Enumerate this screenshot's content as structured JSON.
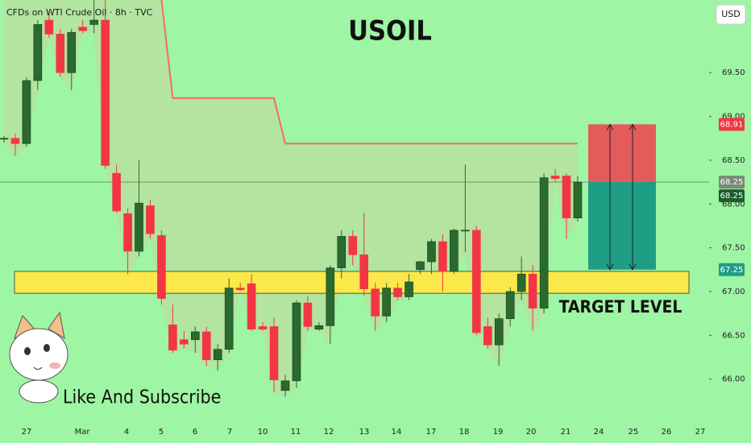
{
  "chart_data": {
    "type": "candlestick",
    "title": "USOIL",
    "subtitle": "CFDs on WTI Crude Oil · 8h · TVC",
    "currency": "USD",
    "annotation": "TARGET LEVEL",
    "caption": "Like And Subscribe",
    "x_labels": [
      "27",
      "Mar",
      "4",
      "5",
      "6",
      "7",
      "10",
      "11",
      "12",
      "13",
      "14",
      "17",
      "18",
      "19",
      "20",
      "21",
      "24",
      "25",
      "26",
      "27"
    ],
    "ylim": [
      65.5,
      70.33
    ],
    "yticks": [
      {
        "value": 66,
        "label": "66.00"
      },
      {
        "value": 66.5,
        "label": "66.50"
      },
      {
        "value": 67,
        "label": "67.00"
      },
      {
        "value": 67.5,
        "label": "67.50"
      },
      {
        "value": 68,
        "label": "68.00"
      },
      {
        "value": 68.5,
        "label": "68.50"
      },
      {
        "value": 69,
        "label": "69.00"
      },
      {
        "value": 69.5,
        "label": "69.50"
      }
    ],
    "grid": false,
    "up_color": "#2a6a2e",
    "down_color": "#f23645",
    "ohlc": [
      [
        68.74,
        68.78,
        68.7,
        68.75
      ],
      [
        68.75,
        68.8,
        68.55,
        68.69
      ],
      [
        68.69,
        69.45,
        68.65,
        69.41
      ],
      [
        69.41,
        70.1,
        69.3,
        70.05
      ],
      [
        70.1,
        70.2,
        69.9,
        69.94
      ],
      [
        69.94,
        70.0,
        69.45,
        69.5
      ],
      [
        69.5,
        70.0,
        69.3,
        69.96
      ],
      [
        70.02,
        70.1,
        69.95,
        69.98
      ],
      [
        70.05,
        70.33,
        69.95,
        70.1
      ],
      [
        70.1,
        70.33,
        68.4,
        68.44
      ],
      [
        68.35,
        68.45,
        67.9,
        67.92
      ],
      [
        67.89,
        67.95,
        67.2,
        67.46
      ],
      [
        67.46,
        68.5,
        67.4,
        68.01
      ],
      [
        67.98,
        68.05,
        67.6,
        67.66
      ],
      [
        67.64,
        67.7,
        66.85,
        66.92
      ],
      [
        66.62,
        66.85,
        66.3,
        66.33
      ],
      [
        66.45,
        66.55,
        66.35,
        66.4
      ],
      [
        66.45,
        66.6,
        66.3,
        66.54
      ],
      [
        66.54,
        66.6,
        66.15,
        66.22
      ],
      [
        66.22,
        66.4,
        66.1,
        66.34
      ],
      [
        66.34,
        67.15,
        66.3,
        67.04
      ],
      [
        67.04,
        67.1,
        67.0,
        67.02
      ],
      [
        67.09,
        67.2,
        66.55,
        66.57
      ],
      [
        66.6,
        66.65,
        66.55,
        66.57
      ],
      [
        66.6,
        66.7,
        65.85,
        65.99
      ],
      [
        65.87,
        66.05,
        65.8,
        65.98
      ],
      [
        65.98,
        66.9,
        65.9,
        66.87
      ],
      [
        66.87,
        66.95,
        66.55,
        66.6
      ],
      [
        66.57,
        66.65,
        66.55,
        66.61
      ],
      [
        66.61,
        67.3,
        66.4,
        67.27
      ],
      [
        67.27,
        67.7,
        67.15,
        67.63
      ],
      [
        67.63,
        67.7,
        67.3,
        67.42
      ],
      [
        67.42,
        67.9,
        66.95,
        67.03
      ],
      [
        67.03,
        67.1,
        66.55,
        66.72
      ],
      [
        66.72,
        67.1,
        66.65,
        67.04
      ],
      [
        67.04,
        67.1,
        66.9,
        66.94
      ],
      [
        66.94,
        67.2,
        66.9,
        67.11
      ],
      [
        67.25,
        67.35,
        67.2,
        67.34
      ],
      [
        67.34,
        67.6,
        67.2,
        67.57
      ],
      [
        67.57,
        67.65,
        67.0,
        67.23
      ],
      [
        67.23,
        67.72,
        67.2,
        67.7
      ],
      [
        67.7,
        68.45,
        67.45,
        67.7
      ],
      [
        67.7,
        67.75,
        66.5,
        66.53
      ],
      [
        66.6,
        66.7,
        66.35,
        66.39
      ],
      [
        66.39,
        66.75,
        66.15,
        66.69
      ],
      [
        66.69,
        67.05,
        66.6,
        67.0
      ],
      [
        67.0,
        67.4,
        66.9,
        67.2
      ],
      [
        67.2,
        67.3,
        66.55,
        66.81
      ],
      [
        66.81,
        68.35,
        66.75,
        68.3
      ],
      [
        68.32,
        68.4,
        68.25,
        68.29
      ],
      [
        68.32,
        68.35,
        67.6,
        67.84
      ],
      [
        67.84,
        68.32,
        67.8,
        68.25
      ]
    ],
    "resistance": {
      "color": "#f26b6b",
      "values": [
        null,
        null,
        null,
        null,
        null,
        null,
        null,
        null,
        null,
        null,
        null,
        null,
        null,
        null,
        70.33,
        69.21,
        69.21,
        69.21,
        69.21,
        69.21,
        69.21,
        69.21,
        69.21,
        69.21,
        69.21,
        68.69,
        68.69,
        68.69,
        68.69,
        68.69,
        68.69,
        68.69,
        68.69,
        68.69,
        68.69,
        68.69,
        68.69,
        68.69,
        68.69,
        68.69,
        68.69,
        68.69,
        68.69,
        68.69,
        68.69,
        68.69,
        68.69,
        68.69,
        68.69,
        68.69,
        68.69,
        68.69
      ]
    },
    "target_zone": [
      66.98,
      67.23
    ],
    "position": {
      "stop": 68.91,
      "entry": 68.25,
      "target": 67.25
    }
  }
}
